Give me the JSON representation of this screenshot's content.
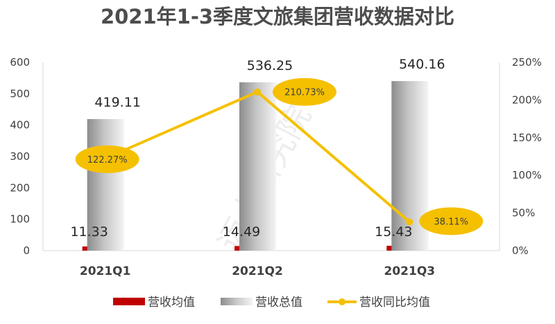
{
  "chart_data": {
    "type": "bar",
    "title": "2021年1-3季度文旅集团营收数据对比",
    "categories": [
      "2021Q1",
      "2021Q2",
      "2021Q3"
    ],
    "series": [
      {
        "name": "营收均值",
        "kind": "bar",
        "axis": "left",
        "values": [
          11.33,
          14.49,
          15.43
        ],
        "value_labels": [
          "11.33",
          "14.49",
          "15.43"
        ],
        "color": "#c00000"
      },
      {
        "name": "营收总值",
        "kind": "bar",
        "axis": "left",
        "values": [
          419.11,
          536.25,
          540.16
        ],
        "value_labels": [
          "419.11",
          "536.25",
          "540.16"
        ],
        "color": "#bfbfbf"
      },
      {
        "name": "营收同比均值",
        "kind": "line",
        "axis": "right",
        "values": [
          122.27,
          210.73,
          38.11
        ],
        "value_labels": [
          "122.27%",
          "210.73%",
          "38.11%"
        ],
        "color": "#f5c000"
      }
    ],
    "left_axis": {
      "min": 0,
      "max": 600,
      "ticks": [
        "0",
        "100",
        "200",
        "300",
        "400",
        "500",
        "600"
      ]
    },
    "right_axis": {
      "min": 0,
      "max": 250,
      "ticks": [
        "0%",
        "50%",
        "100%",
        "150%",
        "200%",
        "250%"
      ]
    },
    "grid": false,
    "legend_position": "bottom",
    "watermark": "迈点研究院"
  }
}
